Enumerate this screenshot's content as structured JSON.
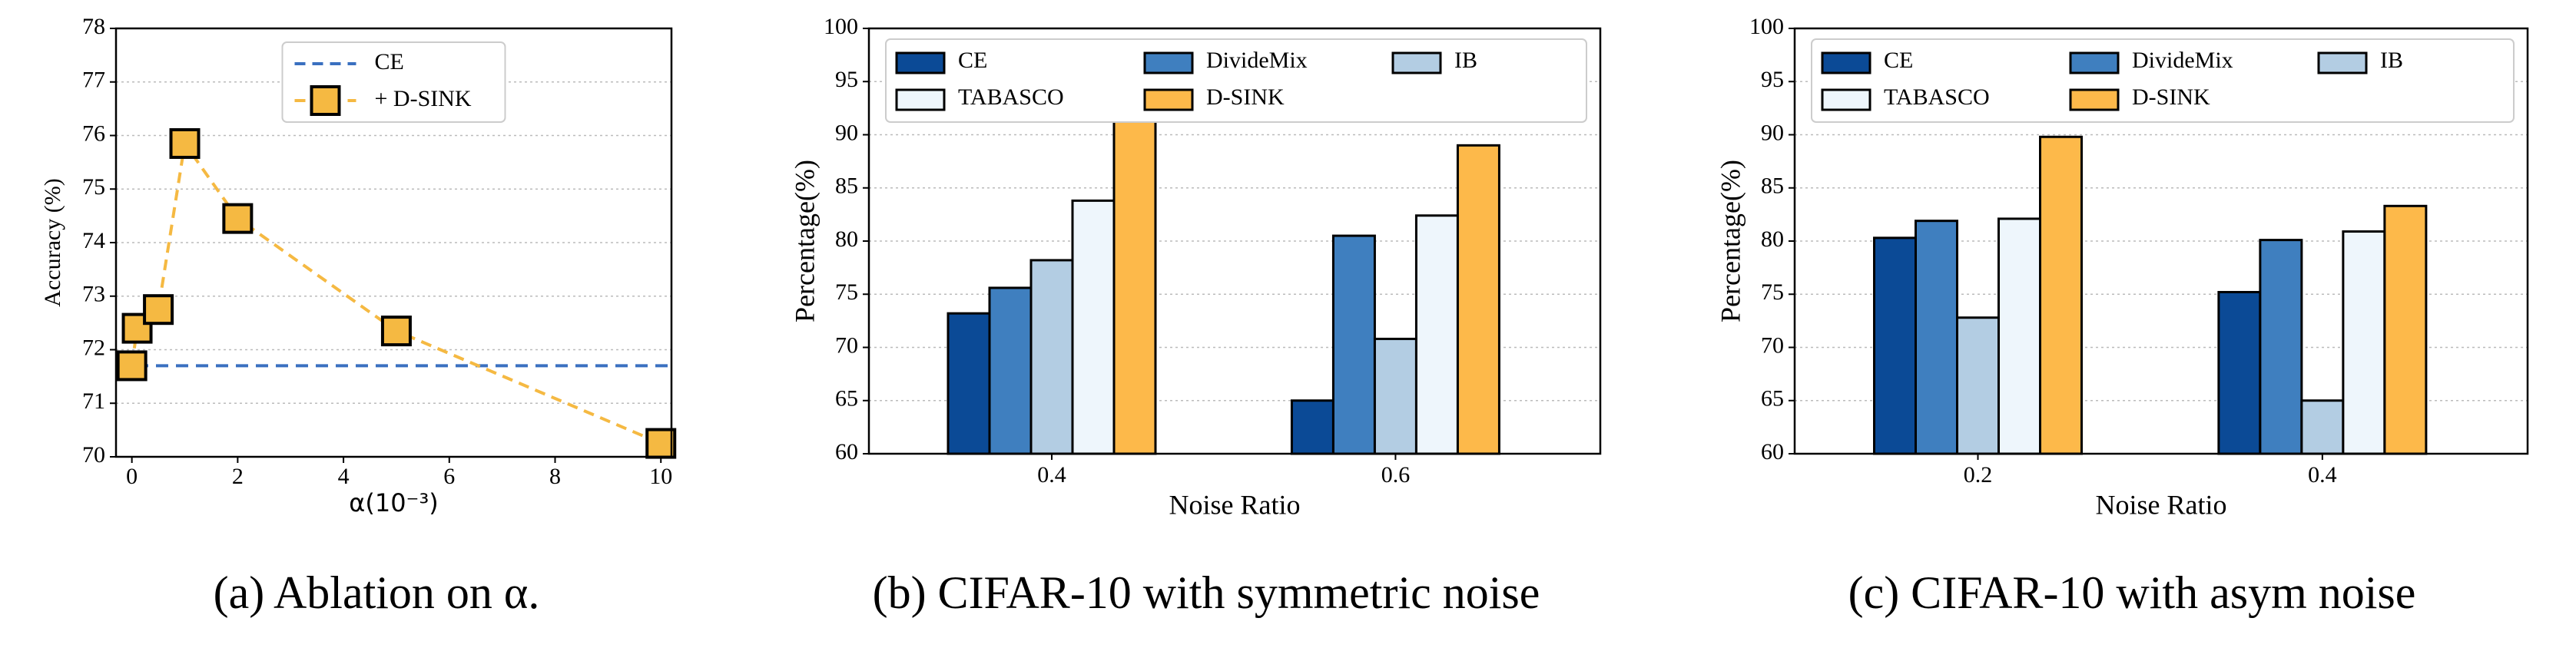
{
  "chart_data": [
    {
      "type": "line",
      "caption": "(a) Ablation on α.",
      "xlabel": "α(10⁻³)",
      "ylabel": "Accuracy (%)",
      "x": [
        0,
        0.1,
        0.5,
        1,
        2,
        5,
        10
      ],
      "series": [
        {
          "name": "CE",
          "color": "#3a70c0",
          "hline": 71.7
        },
        {
          "name": "+ D-SINK",
          "color": "#f5b942",
          "values": [
            71.7,
            72.4,
            72.75,
            75.85,
            74.45,
            72.35,
            70.25
          ]
        }
      ],
      "xlim": [
        -0.3,
        10.2
      ],
      "ylim": [
        70,
        78
      ],
      "xticks": [
        0,
        2,
        4,
        6,
        8,
        10
      ],
      "yticks": [
        70,
        71,
        72,
        73,
        74,
        75,
        76,
        77,
        78
      ],
      "grid": true,
      "legend": "upper center"
    },
    {
      "type": "bar",
      "caption": "(b) CIFAR-10 with symmetric noise",
      "xlabel": "Noise Ratio",
      "ylabel": "Percentage(%)",
      "categories": [
        "0.4",
        "0.6"
      ],
      "series": [
        {
          "name": "CE",
          "color": "#0b4a96",
          "values": [
            73.2,
            65
          ]
        },
        {
          "name": "DivideMix",
          "color": "#3f7fbf",
          "values": [
            75.6,
            80.5
          ]
        },
        {
          "name": "IB",
          "color": "#b3cde3",
          "values": [
            78.2,
            70.8
          ]
        },
        {
          "name": "TABASCO",
          "color": "#eef6fc",
          "values": [
            83.8,
            82.4
          ]
        },
        {
          "name": "D-SINK",
          "color": "#fdb94a",
          "values": [
            92,
            89
          ]
        }
      ],
      "ylim": [
        60,
        100
      ],
      "yticks": [
        60,
        65,
        70,
        75,
        80,
        85,
        90,
        95,
        100
      ],
      "grid": true,
      "legend": "upper left"
    },
    {
      "type": "bar",
      "caption": "(c) CIFAR-10 with asym noise",
      "xlabel": "Noise Ratio",
      "ylabel": "Percentage(%)",
      "categories": [
        "0.2",
        "0.4"
      ],
      "series": [
        {
          "name": "CE",
          "color": "#0b4a96",
          "values": [
            80.3,
            75.2
          ]
        },
        {
          "name": "DivideMix",
          "color": "#3f7fbf",
          "values": [
            81.9,
            80.1
          ]
        },
        {
          "name": "IB",
          "color": "#b3cde3",
          "values": [
            72.8,
            65
          ]
        },
        {
          "name": "TABASCO",
          "color": "#eef6fc",
          "values": [
            82.1,
            80.9
          ]
        },
        {
          "name": "D-SINK",
          "color": "#fdb94a",
          "values": [
            89.8,
            83.3
          ]
        }
      ],
      "ylim": [
        60,
        100
      ],
      "yticks": [
        60,
        65,
        70,
        75,
        80,
        85,
        90,
        95,
        100
      ],
      "grid": true,
      "legend": "upper left"
    }
  ]
}
